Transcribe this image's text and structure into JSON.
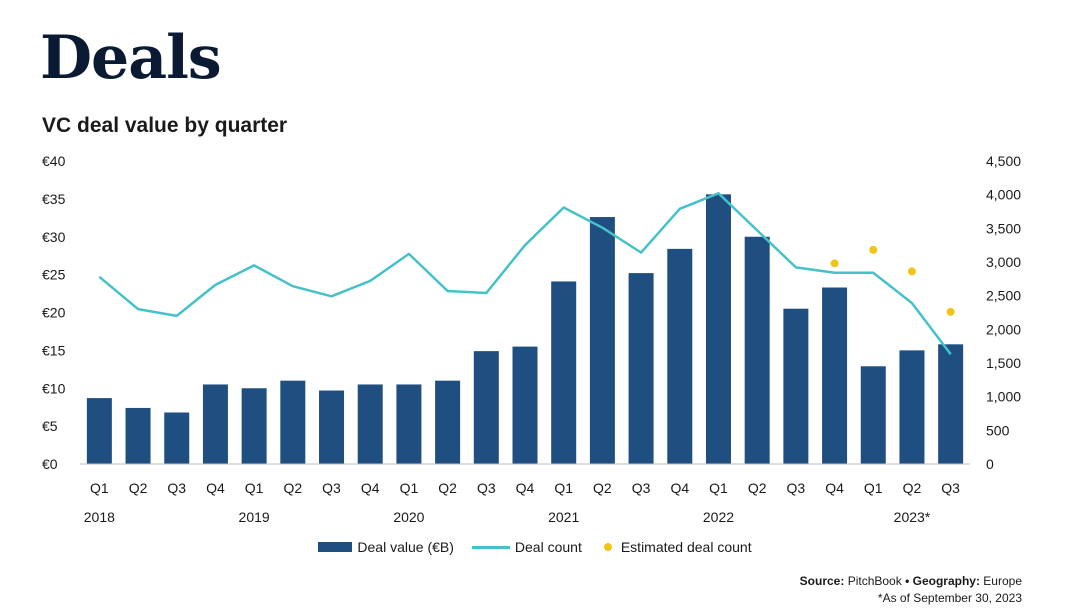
{
  "page": {
    "title": "Deals"
  },
  "chart_data": {
    "type": "bar",
    "title": "VC deal value by quarter",
    "categories": [
      "Q1",
      "Q2",
      "Q3",
      "Q4",
      "Q1",
      "Q2",
      "Q3",
      "Q4",
      "Q1",
      "Q2",
      "Q3",
      "Q4",
      "Q1",
      "Q2",
      "Q3",
      "Q4",
      "Q1",
      "Q2",
      "Q3",
      "Q4",
      "Q1",
      "Q2",
      "Q3"
    ],
    "years": [
      {
        "label": "2018",
        "index": 0
      },
      {
        "label": "2019",
        "index": 4
      },
      {
        "label": "2020",
        "index": 8
      },
      {
        "label": "2021",
        "index": 12
      },
      {
        "label": "2022",
        "index": 16
      },
      {
        "label": "2023*",
        "index": 20
      }
    ],
    "y_left": {
      "ylim": [
        0,
        40
      ],
      "ticks": [
        0,
        5,
        10,
        15,
        20,
        25,
        30,
        35,
        40
      ],
      "tick_labels": [
        "€0",
        "€5",
        "€10",
        "€15",
        "€20",
        "€25",
        "€30",
        "€35",
        "€40"
      ]
    },
    "y_right": {
      "ylim": [
        0,
        4500
      ],
      "ticks": [
        0,
        500,
        1000,
        1500,
        2000,
        2500,
        3000,
        3500,
        4000,
        4500
      ],
      "tick_labels": [
        "0",
        "500",
        "1,000",
        "1,500",
        "2,000",
        "2,500",
        "3,000",
        "3,500",
        "4,000",
        "4,500"
      ]
    },
    "series": [
      {
        "name": "Deal value (€B)",
        "type": "bar",
        "axis": "left",
        "values": [
          8.7,
          7.4,
          6.8,
          10.5,
          10.0,
          11.0,
          9.7,
          10.5,
          10.5,
          11.0,
          14.9,
          15.5,
          24.1,
          32.6,
          25.2,
          28.4,
          35.6,
          30.0,
          20.5,
          23.3,
          12.9,
          15.0,
          15.8
        ]
      },
      {
        "name": "Deal count",
        "type": "line",
        "axis": "right",
        "values": [
          2780,
          2300,
          2200,
          2660,
          2950,
          2640,
          2490,
          2720,
          3120,
          2570,
          2540,
          3250,
          3810,
          3510,
          3140,
          3790,
          4020,
          3470,
          2920,
          2840,
          2840,
          2390,
          1630
        ]
      },
      {
        "name": "Estimated deal count",
        "type": "scatter",
        "axis": "right",
        "points": [
          {
            "index": 19,
            "value": 2980
          },
          {
            "index": 20,
            "value": 3180
          },
          {
            "index": 21,
            "value": 2860
          },
          {
            "index": 22,
            "value": 2260
          }
        ]
      }
    ],
    "colors": {
      "bar": "#1f4e80",
      "line": "#45c1c9",
      "dot": "#f2c318"
    },
    "legend_position": "bottom-center",
    "grid": false
  },
  "legend": {
    "bar_label": "Deal value (€B)",
    "line_label": "Deal count",
    "dot_label": "Estimated deal count"
  },
  "footer": {
    "source_key": "Source:",
    "source_value": "PitchBook",
    "separator": "•",
    "geo_key": "Geography:",
    "geo_value": "Europe",
    "note": "*As of September 30, 2023"
  }
}
